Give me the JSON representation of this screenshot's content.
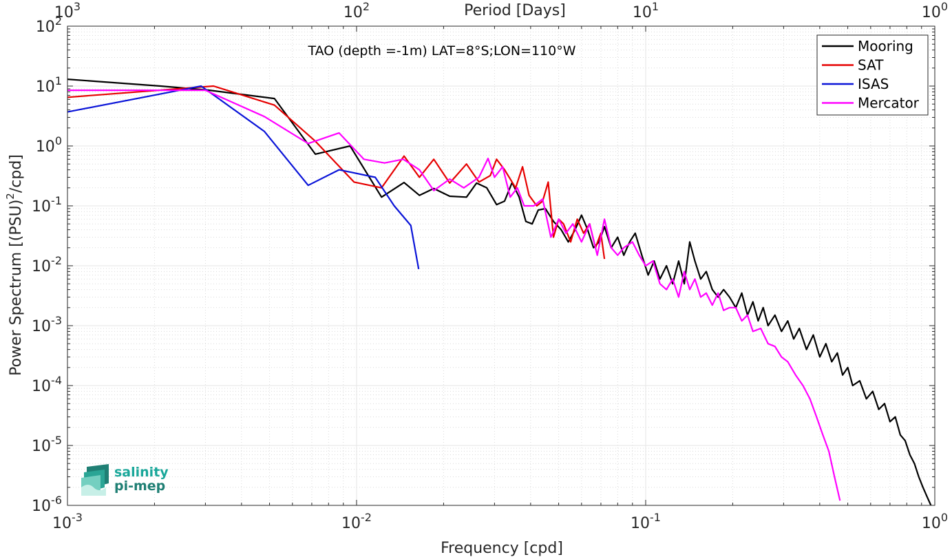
{
  "colors": {
    "mooring": "#000000",
    "sat": "#e60000",
    "isas": "#0a14d8",
    "mercator": "#ff00ff",
    "logo_teal": "#1aa79a",
    "logo_dark": "#1f7f74"
  },
  "logo": {
    "line1": "salinity",
    "line2": "pi-mep"
  },
  "chart_data": {
    "type": "line",
    "title": "TAO (depth =-1m) LAT=8°S;LON=110°W",
    "xlabel": "Frequency [cpd]",
    "ylabel": "Power Spectrum [(PSU)²/cpd]",
    "top_xlabel": "Period [Days]",
    "xscale": "log",
    "yscale": "log",
    "xlim": [
      0.001,
      1
    ],
    "ylim": [
      1e-06,
      100
    ],
    "grid": true,
    "legend_position": "top-right",
    "x_ticks": [
      {
        "value": 0.001,
        "base": "10",
        "exp": "-3"
      },
      {
        "value": 0.01,
        "base": "10",
        "exp": "-2"
      },
      {
        "value": 0.1,
        "base": "10",
        "exp": "-1"
      },
      {
        "value": 1,
        "base": "10",
        "exp": "0"
      }
    ],
    "top_ticks": [
      {
        "value": 0.001,
        "base": "10",
        "exp": "3"
      },
      {
        "value": 0.01,
        "base": "10",
        "exp": "2"
      },
      {
        "value": 0.1,
        "base": "10",
        "exp": "1"
      },
      {
        "value": 1,
        "base": "10",
        "exp": "0"
      }
    ],
    "y_ticks": [
      {
        "value": 100,
        "base": "10",
        "exp": "2"
      },
      {
        "value": 10,
        "base": "10",
        "exp": "1"
      },
      {
        "value": 1,
        "base": "10",
        "exp": "0"
      },
      {
        "value": 0.1,
        "base": "10",
        "exp": "-1"
      },
      {
        "value": 0.01,
        "base": "10",
        "exp": "-2"
      },
      {
        "value": 0.001,
        "base": "10",
        "exp": "-3"
      },
      {
        "value": 0.0001,
        "base": "10",
        "exp": "-4"
      },
      {
        "value": 1e-05,
        "base": "10",
        "exp": "-5"
      },
      {
        "value": 1e-06,
        "base": "10",
        "exp": "-6"
      }
    ],
    "series": [
      {
        "name": "Mooring",
        "color_key": "mooring",
        "points": [
          [
            0.001,
            13
          ],
          [
            0.0021,
            10
          ],
          [
            0.0031,
            8.5
          ],
          [
            0.0052,
            6.2
          ],
          [
            0.0072,
            0.73
          ],
          [
            0.0095,
            1.0
          ],
          [
            0.0122,
            0.14
          ],
          [
            0.0146,
            0.245
          ],
          [
            0.0165,
            0.15
          ],
          [
            0.0185,
            0.195
          ],
          [
            0.021,
            0.145
          ],
          [
            0.024,
            0.14
          ],
          [
            0.026,
            0.24
          ],
          [
            0.0282,
            0.2
          ],
          [
            0.0305,
            0.105
          ],
          [
            0.0325,
            0.12
          ],
          [
            0.0345,
            0.245
          ],
          [
            0.0365,
            0.14
          ],
          [
            0.0385,
            0.055
          ],
          [
            0.0405,
            0.05
          ],
          [
            0.0425,
            0.085
          ],
          [
            0.045,
            0.09
          ],
          [
            0.048,
            0.055
          ],
          [
            0.051,
            0.04
          ],
          [
            0.054,
            0.025
          ],
          [
            0.057,
            0.04
          ],
          [
            0.06,
            0.07
          ],
          [
            0.063,
            0.04
          ],
          [
            0.066,
            0.02
          ],
          [
            0.069,
            0.025
          ],
          [
            0.072,
            0.045
          ],
          [
            0.076,
            0.02
          ],
          [
            0.08,
            0.03
          ],
          [
            0.084,
            0.015
          ],
          [
            0.088,
            0.025
          ],
          [
            0.092,
            0.035
          ],
          [
            0.097,
            0.015
          ],
          [
            0.102,
            0.007
          ],
          [
            0.107,
            0.012
          ],
          [
            0.112,
            0.006
          ],
          [
            0.118,
            0.01
          ],
          [
            0.124,
            0.005
          ],
          [
            0.13,
            0.012
          ],
          [
            0.136,
            0.005
          ],
          [
            0.142,
            0.025
          ],
          [
            0.148,
            0.012
          ],
          [
            0.155,
            0.006
          ],
          [
            0.162,
            0.008
          ],
          [
            0.17,
            0.004
          ],
          [
            0.178,
            0.003
          ],
          [
            0.186,
            0.004
          ],
          [
            0.195,
            0.003
          ],
          [
            0.205,
            0.002
          ],
          [
            0.215,
            0.0035
          ],
          [
            0.225,
            0.0015
          ],
          [
            0.235,
            0.0025
          ],
          [
            0.245,
            0.0012
          ],
          [
            0.255,
            0.002
          ],
          [
            0.265,
            0.001
          ],
          [
            0.28,
            0.0015
          ],
          [
            0.295,
            0.0008
          ],
          [
            0.31,
            0.0012
          ],
          [
            0.325,
            0.0006
          ],
          [
            0.34,
            0.0009
          ],
          [
            0.36,
            0.0004
          ],
          [
            0.38,
            0.0007
          ],
          [
            0.4,
            0.0003
          ],
          [
            0.42,
            0.0005
          ],
          [
            0.44,
            0.00025
          ],
          [
            0.46,
            0.00035
          ],
          [
            0.48,
            0.00015
          ],
          [
            0.5,
            0.0002
          ],
          [
            0.52,
            0.0001
          ],
          [
            0.55,
            0.00012
          ],
          [
            0.58,
            6e-05
          ],
          [
            0.61,
            8e-05
          ],
          [
            0.64,
            4e-05
          ],
          [
            0.67,
            5e-05
          ],
          [
            0.7,
            2.5e-05
          ],
          [
            0.73,
            3e-05
          ],
          [
            0.76,
            1.5e-05
          ],
          [
            0.79,
            1.2e-05
          ],
          [
            0.82,
            7e-06
          ],
          [
            0.85,
            5e-06
          ],
          [
            0.88,
            3e-06
          ],
          [
            0.91,
            2e-06
          ],
          [
            0.94,
            1.4e-06
          ],
          [
            0.97,
            1e-06
          ]
        ]
      },
      {
        "name": "SAT",
        "color_key": "sat",
        "points": [
          [
            0.001,
            6.5
          ],
          [
            0.0032,
            10
          ],
          [
            0.0052,
            4.8
          ],
          [
            0.0072,
            1.2
          ],
          [
            0.0098,
            0.25
          ],
          [
            0.0122,
            0.2
          ],
          [
            0.0146,
            0.68
          ],
          [
            0.0165,
            0.3
          ],
          [
            0.0185,
            0.6
          ],
          [
            0.021,
            0.24
          ],
          [
            0.024,
            0.5
          ],
          [
            0.0265,
            0.25
          ],
          [
            0.029,
            0.32
          ],
          [
            0.0305,
            0.6
          ],
          [
            0.0325,
            0.4
          ],
          [
            0.0355,
            0.2
          ],
          [
            0.0375,
            0.45
          ],
          [
            0.0395,
            0.15
          ],
          [
            0.042,
            0.1
          ],
          [
            0.044,
            0.12
          ],
          [
            0.046,
            0.25
          ],
          [
            0.048,
            0.03
          ],
          [
            0.05,
            0.06
          ],
          [
            0.052,
            0.05
          ],
          [
            0.055,
            0.025
          ],
          [
            0.058,
            0.06
          ],
          [
            0.061,
            0.035
          ],
          [
            0.064,
            0.05
          ],
          [
            0.067,
            0.02
          ],
          [
            0.07,
            0.035
          ],
          [
            0.072,
            0.013
          ]
        ]
      },
      {
        "name": "ISAS",
        "color_key": "isas",
        "points": [
          [
            0.001,
            3.7
          ],
          [
            0.0029,
            10
          ],
          [
            0.0048,
            1.75
          ],
          [
            0.0068,
            0.22
          ],
          [
            0.0087,
            0.4
          ],
          [
            0.0116,
            0.3
          ],
          [
            0.0135,
            0.1
          ],
          [
            0.0154,
            0.047
          ],
          [
            0.0164,
            0.0088
          ]
        ]
      },
      {
        "name": "Mercator",
        "color_key": "mercator",
        "points": [
          [
            0.001,
            8.5
          ],
          [
            0.003,
            8.5
          ],
          [
            0.0048,
            3.1
          ],
          [
            0.0068,
            1.1
          ],
          [
            0.0087,
            1.65
          ],
          [
            0.0106,
            0.6
          ],
          [
            0.0125,
            0.52
          ],
          [
            0.0145,
            0.6
          ],
          [
            0.0165,
            0.4
          ],
          [
            0.0185,
            0.18
          ],
          [
            0.021,
            0.28
          ],
          [
            0.0235,
            0.2
          ],
          [
            0.0265,
            0.3
          ],
          [
            0.0285,
            0.62
          ],
          [
            0.03,
            0.3
          ],
          [
            0.032,
            0.45
          ],
          [
            0.034,
            0.14
          ],
          [
            0.036,
            0.2
          ],
          [
            0.038,
            0.1
          ],
          [
            0.041,
            0.1
          ],
          [
            0.044,
            0.13
          ],
          [
            0.047,
            0.03
          ],
          [
            0.05,
            0.06
          ],
          [
            0.053,
            0.035
          ],
          [
            0.056,
            0.05
          ],
          [
            0.06,
            0.025
          ],
          [
            0.064,
            0.05
          ],
          [
            0.068,
            0.015
          ],
          [
            0.072,
            0.06
          ],
          [
            0.076,
            0.02
          ],
          [
            0.08,
            0.015
          ],
          [
            0.084,
            0.02
          ],
          [
            0.09,
            0.025
          ],
          [
            0.095,
            0.015
          ],
          [
            0.1,
            0.01
          ],
          [
            0.106,
            0.012
          ],
          [
            0.112,
            0.005
          ],
          [
            0.118,
            0.004
          ],
          [
            0.124,
            0.006
          ],
          [
            0.13,
            0.003
          ],
          [
            0.136,
            0.008
          ],
          [
            0.142,
            0.004
          ],
          [
            0.148,
            0.006
          ],
          [
            0.155,
            0.003
          ],
          [
            0.162,
            0.0035
          ],
          [
            0.17,
            0.0022
          ],
          [
            0.178,
            0.0035
          ],
          [
            0.186,
            0.0018
          ],
          [
            0.195,
            0.002
          ],
          [
            0.205,
            0.002
          ],
          [
            0.215,
            0.0012
          ],
          [
            0.225,
            0.0015
          ],
          [
            0.235,
            0.0008
          ],
          [
            0.25,
            0.0009
          ],
          [
            0.265,
            0.0005
          ],
          [
            0.28,
            0.00045
          ],
          [
            0.295,
            0.0003
          ],
          [
            0.31,
            0.00025
          ],
          [
            0.33,
            0.00015
          ],
          [
            0.35,
            0.0001
          ],
          [
            0.37,
            6e-05
          ],
          [
            0.39,
            3e-05
          ],
          [
            0.41,
            1.5e-05
          ],
          [
            0.43,
            8e-06
          ],
          [
            0.45,
            3e-06
          ],
          [
            0.47,
            1.2e-06
          ]
        ]
      }
    ]
  }
}
